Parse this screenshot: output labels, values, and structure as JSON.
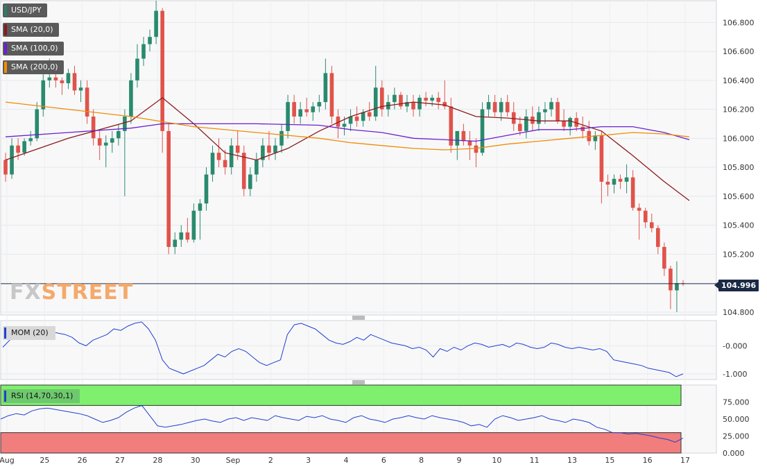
{
  "chart_data": {
    "type": "candlestick",
    "symbol": "USD/JPY",
    "last_price": "104.996",
    "watermark": {
      "part1": "FX",
      "part2": "STREET"
    },
    "x_labels": [
      "Aug",
      "25",
      "26",
      "27",
      "28",
      "30",
      "Sep",
      "2",
      "3",
      "4",
      "6",
      "8",
      "9",
      "10",
      "11",
      "13",
      "15",
      "16",
      "17"
    ],
    "price_axis": {
      "ylim": [
        104.78,
        106.95
      ],
      "ticks": [
        "106.800",
        "106.600",
        "106.400",
        "106.200",
        "106.000",
        "105.800",
        "105.600",
        "105.400",
        "105.200",
        "104.800"
      ]
    },
    "candles": [
      [
        105.85,
        105.9,
        105.7,
        105.75
      ],
      [
        105.75,
        106.0,
        105.72,
        105.95
      ],
      [
        105.95,
        106.0,
        105.85,
        105.9
      ],
      [
        105.9,
        106.0,
        105.88,
        105.98
      ],
      [
        105.98,
        106.05,
        105.95,
        106.0
      ],
      [
        106.0,
        106.25,
        105.98,
        106.2
      ],
      [
        106.2,
        106.45,
        106.15,
        106.4
      ],
      [
        106.4,
        106.55,
        106.35,
        106.42
      ],
      [
        106.42,
        106.45,
        106.35,
        106.4
      ],
      [
        106.4,
        106.42,
        106.3,
        106.38
      ],
      [
        106.38,
        106.48,
        106.34,
        106.45
      ],
      [
        106.45,
        106.5,
        106.3,
        106.33
      ],
      [
        106.33,
        106.4,
        106.25,
        106.35
      ],
      [
        106.35,
        106.4,
        106.1,
        106.15
      ],
      [
        106.15,
        106.2,
        105.95,
        106.0
      ],
      [
        106.0,
        106.05,
        105.85,
        105.95
      ],
      [
        105.95,
        106.02,
        105.8,
        105.97
      ],
      [
        105.97,
        106.05,
        105.9,
        106.0
      ],
      [
        106.0,
        106.1,
        105.95,
        106.05
      ],
      [
        106.05,
        106.2,
        105.6,
        106.15
      ],
      [
        106.15,
        106.45,
        106.1,
        106.4
      ],
      [
        106.4,
        106.65,
        106.35,
        106.55
      ],
      [
        106.55,
        106.7,
        106.5,
        106.65
      ],
      [
        106.65,
        106.75,
        106.6,
        106.7
      ],
      [
        106.7,
        106.95,
        106.65,
        106.88
      ],
      [
        106.88,
        106.9,
        105.9,
        106.05
      ],
      [
        106.05,
        106.1,
        105.2,
        105.25
      ],
      [
        105.25,
        105.35,
        105.2,
        105.3
      ],
      [
        105.3,
        105.4,
        105.25,
        105.35
      ],
      [
        105.35,
        105.45,
        105.28,
        105.3
      ],
      [
        105.3,
        105.55,
        105.28,
        105.5
      ],
      [
        105.5,
        105.58,
        105.3,
        105.55
      ],
      [
        105.55,
        105.8,
        105.5,
        105.75
      ],
      [
        105.75,
        105.95,
        105.7,
        105.9
      ],
      [
        105.9,
        106.0,
        105.8,
        105.85
      ],
      [
        105.85,
        105.92,
        105.75,
        105.8
      ],
      [
        105.8,
        106.0,
        105.75,
        105.95
      ],
      [
        105.95,
        106.05,
        105.85,
        105.9
      ],
      [
        105.9,
        105.95,
        105.6,
        105.65
      ],
      [
        105.65,
        105.8,
        105.6,
        105.75
      ],
      [
        105.75,
        105.9,
        105.7,
        105.85
      ],
      [
        105.85,
        106.0,
        105.8,
        105.95
      ],
      [
        105.95,
        106.05,
        105.85,
        105.9
      ],
      [
        105.9,
        106.0,
        105.85,
        105.95
      ],
      [
        105.95,
        106.1,
        105.9,
        106.05
      ],
      [
        106.05,
        106.3,
        106.0,
        106.25
      ],
      [
        106.25,
        106.3,
        106.1,
        106.15
      ],
      [
        106.15,
        106.25,
        106.1,
        106.2
      ],
      [
        106.2,
        106.28,
        106.15,
        106.18
      ],
      [
        106.18,
        106.25,
        106.12,
        106.22
      ],
      [
        106.22,
        106.3,
        106.18,
        106.25
      ],
      [
        106.25,
        106.55,
        106.2,
        106.45
      ],
      [
        106.45,
        106.5,
        106.1,
        106.15
      ],
      [
        106.15,
        106.2,
        106.0,
        106.08
      ],
      [
        106.08,
        106.15,
        106.02,
        106.1
      ],
      [
        106.1,
        106.2,
        106.05,
        106.15
      ],
      [
        106.15,
        106.22,
        106.08,
        106.12
      ],
      [
        106.12,
        106.2,
        106.08,
        106.18
      ],
      [
        106.18,
        106.25,
        106.12,
        106.15
      ],
      [
        106.15,
        106.5,
        106.12,
        106.35
      ],
      [
        106.35,
        106.4,
        106.15,
        106.2
      ],
      [
        106.2,
        106.3,
        106.15,
        106.25
      ],
      [
        106.25,
        106.35,
        106.2,
        106.3
      ],
      [
        106.3,
        106.32,
        106.2,
        106.22
      ],
      [
        106.22,
        106.3,
        106.18,
        106.25
      ],
      [
        106.25,
        106.3,
        106.15,
        106.2
      ],
      [
        106.2,
        106.3,
        106.15,
        106.28
      ],
      [
        106.28,
        106.32,
        106.22,
        106.26
      ],
      [
        106.26,
        106.3,
        106.22,
        106.28
      ],
      [
        106.28,
        106.32,
        106.2,
        106.25
      ],
      [
        106.25,
        106.4,
        106.2,
        106.22
      ],
      [
        106.22,
        106.28,
        105.9,
        105.95
      ],
      [
        105.95,
        106.05,
        105.85,
        106.05
      ],
      [
        106.05,
        106.1,
        105.95,
        105.98
      ],
      [
        105.98,
        106.05,
        105.85,
        105.95
      ],
      [
        105.95,
        106.0,
        105.8,
        105.9
      ],
      [
        105.9,
        106.25,
        105.88,
        106.2
      ],
      [
        106.2,
        106.3,
        106.15,
        106.25
      ],
      [
        106.25,
        106.3,
        106.15,
        106.18
      ],
      [
        106.18,
        106.28,
        106.12,
        106.25
      ],
      [
        106.25,
        106.3,
        106.15,
        106.18
      ],
      [
        106.18,
        106.25,
        106.05,
        106.1
      ],
      [
        106.1,
        106.15,
        106.02,
        106.05
      ],
      [
        106.05,
        106.2,
        106.0,
        106.15
      ],
      [
        106.15,
        106.22,
        106.05,
        106.1
      ],
      [
        106.1,
        106.22,
        106.05,
        106.18
      ],
      [
        106.18,
        106.25,
        106.1,
        106.2
      ],
      [
        106.2,
        106.28,
        106.15,
        106.25
      ],
      [
        106.25,
        106.28,
        106.1,
        106.12
      ],
      [
        106.12,
        106.2,
        106.05,
        106.08
      ],
      [
        106.08,
        106.15,
        106.02,
        106.14
      ],
      [
        106.14,
        106.18,
        106.05,
        106.08
      ],
      [
        106.08,
        106.15,
        106.0,
        106.05
      ],
      [
        106.05,
        106.12,
        105.95,
        105.98
      ],
      [
        105.98,
        106.05,
        105.92,
        106.02
      ],
      [
        106.02,
        106.05,
        105.55,
        105.7
      ],
      [
        105.7,
        105.75,
        105.6,
        105.68
      ],
      [
        105.68,
        105.75,
        105.62,
        105.72
      ],
      [
        105.72,
        105.75,
        105.65,
        105.7
      ],
      [
        105.7,
        105.82,
        105.62,
        105.73
      ],
      [
        105.73,
        105.78,
        105.5,
        105.52
      ],
      [
        105.52,
        105.55,
        105.3,
        105.5
      ],
      [
        105.5,
        105.52,
        105.38,
        105.42
      ],
      [
        105.42,
        105.48,
        105.35,
        105.38
      ],
      [
        105.38,
        105.4,
        105.2,
        105.25
      ],
      [
        105.25,
        105.28,
        105.05,
        105.1
      ],
      [
        105.1,
        105.12,
        104.82,
        104.95
      ],
      [
        104.95,
        105.15,
        104.8,
        105.0
      ],
      [
        105.0,
        105.02,
        104.98,
        104.996
      ]
    ],
    "series": [
      {
        "name": "SMA (20,0)",
        "color": "#8b1a1a",
        "values": [
          [
            0,
            105.85
          ],
          [
            10,
            106.0
          ],
          [
            20,
            106.12
          ],
          [
            25,
            106.28
          ],
          [
            30,
            106.1
          ],
          [
            35,
            105.9
          ],
          [
            40,
            105.85
          ],
          [
            45,
            105.93
          ],
          [
            50,
            106.05
          ],
          [
            55,
            106.15
          ],
          [
            60,
            106.22
          ],
          [
            65,
            106.25
          ],
          [
            70,
            106.23
          ],
          [
            75,
            106.15
          ],
          [
            80,
            106.14
          ],
          [
            85,
            106.12
          ],
          [
            90,
            106.12
          ],
          [
            95,
            106.05
          ],
          [
            100,
            105.88
          ],
          [
            105,
            105.7
          ],
          [
            109,
            105.57
          ]
        ]
      },
      {
        "name": "SMA (100,0)",
        "color": "#6a1fd0",
        "values": [
          [
            0,
            106.01
          ],
          [
            10,
            106.04
          ],
          [
            20,
            106.07
          ],
          [
            25,
            106.1
          ],
          [
            30,
            106.1
          ],
          [
            40,
            106.1
          ],
          [
            50,
            106.09
          ],
          [
            55,
            106.06
          ],
          [
            60,
            106.04
          ],
          [
            65,
            106.0
          ],
          [
            70,
            105.99
          ],
          [
            75,
            105.98
          ],
          [
            80,
            106.02
          ],
          [
            85,
            106.06
          ],
          [
            90,
            106.06
          ],
          [
            95,
            106.08
          ],
          [
            100,
            106.08
          ],
          [
            105,
            106.04
          ],
          [
            109,
            105.99
          ]
        ]
      },
      {
        "name": "SMA (200,0)",
        "color": "#f08c00",
        "values": [
          [
            0,
            106.25
          ],
          [
            10,
            106.2
          ],
          [
            20,
            106.15
          ],
          [
            30,
            106.08
          ],
          [
            40,
            106.04
          ],
          [
            50,
            106.0
          ],
          [
            55,
            105.97
          ],
          [
            60,
            105.95
          ],
          [
            65,
            105.93
          ],
          [
            70,
            105.92
          ],
          [
            75,
            105.93
          ],
          [
            80,
            105.96
          ],
          [
            85,
            105.98
          ],
          [
            90,
            106.0
          ],
          [
            95,
            106.02
          ],
          [
            100,
            106.04
          ],
          [
            105,
            106.03
          ],
          [
            109,
            106.01
          ]
        ]
      }
    ],
    "momentum": {
      "name": "MOM (20)",
      "color": "#1f3fd0",
      "ticks": [
        "-0.000",
        "-1.000"
      ],
      "ylim": [
        -1.2,
        0.9
      ],
      "values": [
        -0.05,
        0.2,
        0.5,
        0.6,
        0.65,
        0.55,
        0.6,
        0.5,
        0.45,
        0.4,
        0.3,
        0.1,
        0.0,
        0.2,
        0.3,
        0.4,
        0.6,
        0.55,
        0.7,
        0.8,
        0.85,
        0.6,
        0.2,
        -0.5,
        -0.8,
        -0.9,
        -1.0,
        -0.9,
        -0.8,
        -0.7,
        -0.5,
        -0.3,
        -0.4,
        -0.2,
        -0.1,
        -0.2,
        -0.4,
        -0.6,
        -0.7,
        -0.6,
        -0.5,
        0.4,
        0.75,
        0.8,
        0.7,
        0.6,
        0.4,
        0.2,
        0.1,
        0.05,
        0.15,
        0.3,
        0.2,
        0.4,
        0.3,
        0.2,
        0.1,
        0.05,
        0.0,
        -0.1,
        -0.05,
        -0.15,
        -0.4,
        -0.1,
        -0.2,
        -0.05,
        -0.15,
        0.0,
        0.1,
        0.05,
        -0.05,
        0.0,
        0.05,
        -0.05,
        0.1,
        0.05,
        -0.05,
        -0.1,
        -0.05,
        0.1,
        0.05,
        -0.05,
        -0.1,
        -0.05,
        -0.1,
        -0.15,
        -0.1,
        -0.2,
        -0.5,
        -0.55,
        -0.6,
        -0.65,
        -0.7,
        -0.8,
        -0.85,
        -0.9,
        -0.95,
        -1.1,
        -1.0
      ]
    },
    "rsi": {
      "name": "RSI (14,70,30,1)",
      "color": "#1f3fd0",
      "ticks": [
        "75.000",
        "50.000",
        "25.000",
        "0.000"
      ],
      "ylim": [
        0,
        100
      ],
      "overbought": 70,
      "oversold": 30,
      "values": [
        50,
        55,
        58,
        56,
        62,
        65,
        66,
        64,
        62,
        60,
        58,
        55,
        50,
        45,
        48,
        52,
        60,
        66,
        70,
        55,
        40,
        38,
        40,
        42,
        45,
        48,
        50,
        47,
        45,
        50,
        52,
        48,
        52,
        50,
        48,
        55,
        52,
        50,
        48,
        54,
        52,
        55,
        50,
        48,
        45,
        52,
        55,
        50,
        48,
        45,
        50,
        52,
        55,
        52,
        50,
        55,
        52,
        50,
        48,
        45,
        40,
        42,
        38,
        50,
        55,
        52,
        48,
        50,
        52,
        55,
        50,
        48,
        45,
        50,
        48,
        45,
        38,
        35,
        30,
        30,
        28,
        29,
        27,
        25,
        22,
        20,
        16,
        22
      ]
    }
  }
}
